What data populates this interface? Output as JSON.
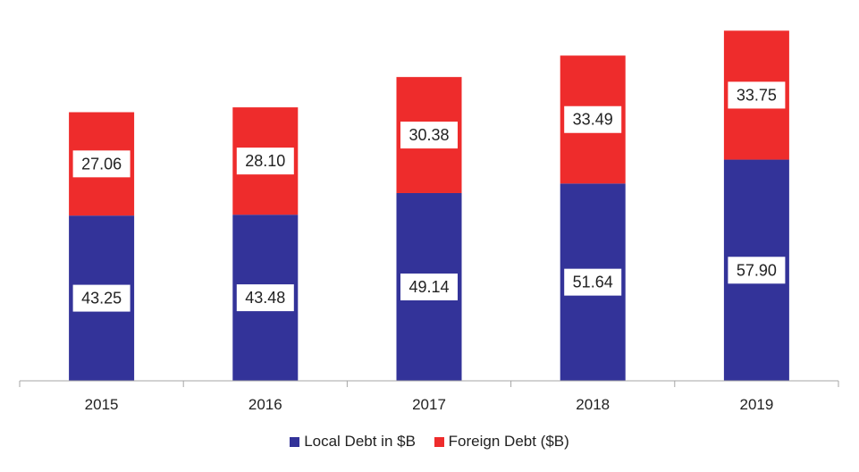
{
  "chart_data": {
    "type": "bar",
    "stacked": true,
    "title": "",
    "xlabel": "",
    "ylabel": "",
    "ylim": [
      0,
      95
    ],
    "grid": false,
    "legend_position": "bottom",
    "categories": [
      "2015",
      "2016",
      "2017",
      "2018",
      "2019"
    ],
    "series": [
      {
        "name": "Local Debt in $B",
        "color": "#333399",
        "values": [
          43.25,
          43.48,
          49.14,
          51.64,
          57.9
        ],
        "labels": [
          "43.25",
          "43.48",
          "49.14",
          "51.64",
          "57.90"
        ]
      },
      {
        "name": "Foreign Debt ($B)",
        "color": "#ee2c2c",
        "values": [
          27.06,
          28.1,
          30.38,
          33.49,
          33.75
        ],
        "labels": [
          "27.06",
          "28.10",
          "30.38",
          "33.49",
          "33.75"
        ]
      }
    ]
  }
}
